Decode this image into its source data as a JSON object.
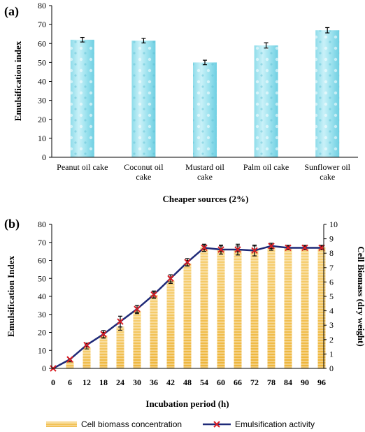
{
  "chart_data": [
    {
      "type": "bar",
      "panel_label": "(a)",
      "title": "",
      "categories": [
        "Peanut oil cake",
        "Coconut oil cake",
        "Mustard oil cake",
        "Palm oil cake",
        "Sunflower oil cake"
      ],
      "category_lines": [
        [
          "Peanut oil cake"
        ],
        [
          "Coconut oil",
          "cake"
        ],
        [
          "Mustard oil",
          "cake"
        ],
        [
          "Palm oil cake"
        ],
        [
          "Sunflower oil",
          "cake"
        ]
      ],
      "values": [
        62,
        61.5,
        50,
        59,
        67
      ],
      "errors": [
        1.2,
        1.2,
        1.2,
        1.4,
        1.4
      ],
      "xlabel": "Cheaper sources (2%)",
      "ylabel": "Emulsification index",
      "ylim": [
        0,
        80
      ],
      "yticks": [
        "0",
        "10",
        "20",
        "30",
        "40",
        "50",
        "60",
        "70",
        "80"
      ],
      "grid": false,
      "colors": {
        "bar": "#7fd8e8",
        "bar_highlight": "#c9f1f8",
        "bar_edge": "#5fc4d8",
        "error": "#000000"
      }
    },
    {
      "type": "bar+line",
      "panel_label": "(b)",
      "title": "",
      "x": [
        "0",
        "6",
        "12",
        "18",
        "24",
        "30",
        "36",
        "42",
        "48",
        "54",
        "60",
        "66",
        "72",
        "78",
        "84",
        "90",
        "96"
      ],
      "xlabel": "Incubation period (h)",
      "ylabel_left": "Emulsification Index",
      "ylabel_right": "Cell Biomass (dry weight)",
      "ylim_left": [
        0,
        80
      ],
      "ylim_right": [
        0,
        10
      ],
      "yticks_left": [
        "0",
        "10",
        "20",
        "30",
        "40",
        "50",
        "60",
        "70",
        "80"
      ],
      "yticks_right": [
        "0",
        "1",
        "2",
        "3",
        "4",
        "5",
        "6",
        "7",
        "8",
        "9",
        "10"
      ],
      "grid": false,
      "legend_position": "bottom",
      "series": [
        {
          "name": "Cell biomass concentration",
          "kind": "bar",
          "axis": "right",
          "color": "#f3c24f",
          "values": [
            0,
            0.5,
            1.5,
            2.3,
            2.9,
            4.0,
            5.1,
            6.1,
            7.3,
            8.4,
            8.3,
            8.3,
            8.3,
            8.4,
            8.4,
            8.4,
            8.4
          ],
          "errors": [
            0,
            0.05,
            0.15,
            0.2,
            0.25,
            0.2,
            0.2,
            0.2,
            0.2,
            0.15,
            0.2,
            0.2,
            0.2,
            0.2,
            0.15,
            0.15,
            0.15
          ]
        },
        {
          "name": "Emulsification activity",
          "kind": "line",
          "axis": "left",
          "color": "#1f2a78",
          "marker_color": "#d91f26",
          "values": [
            0,
            5,
            13,
            19,
            26,
            33,
            41,
            50,
            59,
            67,
            66,
            66,
            65.5,
            68,
            67,
            67,
            67
          ],
          "errors": [
            0,
            0.5,
            1,
            2,
            3,
            2,
            2,
            2,
            2,
            2,
            2.5,
            3,
            3,
            1.5,
            1,
            1,
            1
          ]
        }
      ]
    }
  ]
}
